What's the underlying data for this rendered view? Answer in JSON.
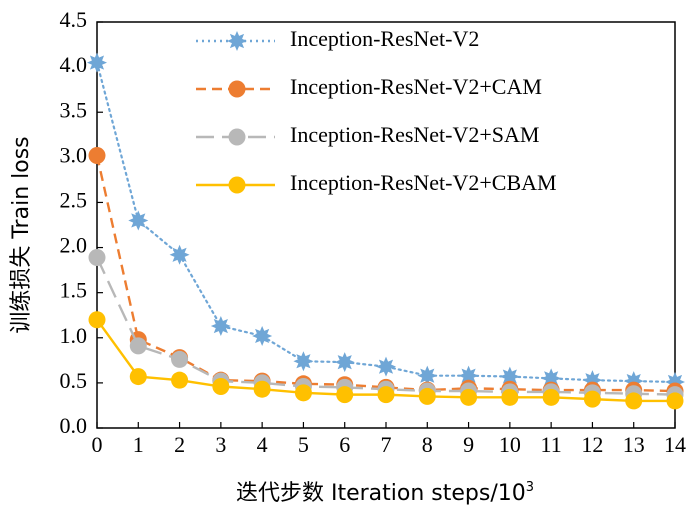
{
  "chart_data": {
    "type": "line",
    "xlabel": "迭代步数 Iteration steps/10",
    "xlabel_exponent": "3",
    "ylabel": "训练损失 Train loss",
    "xlim": [
      0,
      14
    ],
    "ylim": [
      0,
      4.5
    ],
    "x_ticks": [
      "0",
      "1",
      "2",
      "3",
      "4",
      "5",
      "6",
      "7",
      "8",
      "9",
      "10",
      "11",
      "12",
      "13",
      "14"
    ],
    "y_ticks": [
      "0.0",
      "0.5",
      "1.0",
      "1.5",
      "2.0",
      "2.5",
      "3.0",
      "3.5",
      "4.0",
      "4.5"
    ],
    "grid": false,
    "legend_position": "top-right",
    "x": [
      0,
      1,
      2,
      3,
      4,
      5,
      6,
      7,
      8,
      9,
      10,
      11,
      12,
      13,
      14
    ],
    "series": [
      {
        "name": "Inception-ResNet-V2",
        "values": [
          4.05,
          2.3,
          1.92,
          1.13,
          1.02,
          0.74,
          0.73,
          0.68,
          0.58,
          0.58,
          0.57,
          0.55,
          0.53,
          0.52,
          0.51
        ],
        "color": "#6fa6d6",
        "line": "dotted",
        "marker": "star"
      },
      {
        "name": "Inception-ResNet-V2+CAM",
        "values": [
          3.02,
          0.98,
          0.78,
          0.53,
          0.52,
          0.49,
          0.48,
          0.45,
          0.42,
          0.44,
          0.43,
          0.42,
          0.42,
          0.42,
          0.41
        ],
        "color": "#ed7d31",
        "line": "dashed",
        "marker": "circle"
      },
      {
        "name": "Inception-ResNet-V2+SAM",
        "values": [
          1.89,
          0.91,
          0.76,
          0.52,
          0.5,
          0.46,
          0.45,
          0.43,
          0.41,
          0.41,
          0.4,
          0.4,
          0.39,
          0.38,
          0.37
        ],
        "color": "#b8b8b8",
        "line": "longdash",
        "marker": "circle"
      },
      {
        "name": "Inception-ResNet-V2+CBAM",
        "values": [
          1.2,
          0.57,
          0.53,
          0.46,
          0.43,
          0.39,
          0.37,
          0.37,
          0.35,
          0.34,
          0.34,
          0.34,
          0.32,
          0.3,
          0.3
        ],
        "color": "#ffc000",
        "line": "solid",
        "marker": "circle"
      }
    ]
  }
}
